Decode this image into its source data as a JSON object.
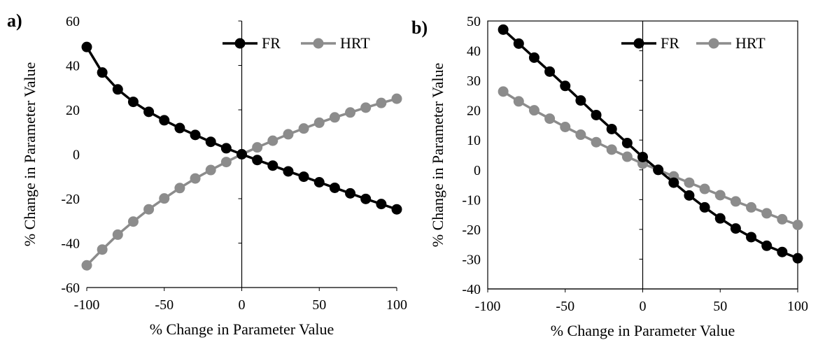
{
  "colors": {
    "FR": "#000000",
    "HRT": "#8c8c8c",
    "axis": "#000000"
  },
  "chart_data": [
    {
      "type": "line",
      "panel_label": "a)",
      "xlabel": "% Change in Parameter Value",
      "ylabel": "% Change in Parameter Value",
      "xlim": [
        -100,
        100
      ],
      "ylim": [
        -60,
        60
      ],
      "xticks": [
        -100,
        -50,
        0,
        50,
        100
      ],
      "yticks": [
        -60,
        -40,
        -20,
        0,
        20,
        40,
        60
      ],
      "grid": false,
      "legend": "top-right",
      "x": [
        -100,
        -90,
        -80,
        -70,
        -60,
        -50,
        -40,
        -30,
        -20,
        -10,
        0,
        10,
        20,
        30,
        40,
        50,
        60,
        70,
        80,
        90,
        100
      ],
      "series": [
        {
          "name": "FR",
          "color_key": "FR",
          "values": [
            48.3,
            36.8,
            29.2,
            23.6,
            19.1,
            15.3,
            11.8,
            8.7,
            5.6,
            2.7,
            0,
            -2.6,
            -5.1,
            -7.7,
            -10.1,
            -12.6,
            -15.1,
            -17.6,
            -20.1,
            -22.4,
            -24.8
          ]
        },
        {
          "name": "HRT",
          "color_key": "HRT",
          "values": [
            -50,
            -42.9,
            -36.2,
            -30.3,
            -24.8,
            -19.9,
            -15.2,
            -10.9,
            -7.1,
            -3.5,
            0,
            3.1,
            6.1,
            9,
            11.6,
            14.2,
            16.6,
            18.8,
            21,
            23.1,
            25
          ]
        }
      ]
    },
    {
      "type": "line",
      "panel_label": "b)",
      "xlabel": "% Change in Parameter Value",
      "ylabel": "% Change in Parameter Value",
      "xlim": [
        -100,
        100
      ],
      "ylim": [
        -40,
        50
      ],
      "xticks": [
        -100,
        -50,
        0,
        50,
        100
      ],
      "yticks": [
        -40,
        -30,
        -20,
        -10,
        0,
        10,
        20,
        30,
        40,
        50
      ],
      "grid": false,
      "legend": "top-right",
      "x": [
        -90,
        -80,
        -70,
        -60,
        -50,
        -40,
        -30,
        -20,
        -10,
        0,
        10,
        20,
        30,
        40,
        50,
        60,
        70,
        80,
        90,
        100
      ],
      "series": [
        {
          "name": "FR",
          "color_key": "FR",
          "values": [
            47.1,
            42.4,
            37.7,
            33,
            28.2,
            23.3,
            18.4,
            13.7,
            9,
            4.3,
            0,
            -4.3,
            -8.6,
            -12.6,
            -16.3,
            -19.7,
            -22.6,
            -25.5,
            -27.6,
            -29.7
          ]
        },
        {
          "name": "HRT",
          "color_key": "HRT",
          "values": [
            26.3,
            23,
            20,
            17.2,
            14.4,
            11.8,
            9.3,
            6.8,
            4.4,
            2.1,
            0,
            -2.2,
            -4.3,
            -6.4,
            -8.5,
            -10.6,
            -12.6,
            -14.6,
            -16.6,
            -18.5
          ]
        }
      ]
    }
  ]
}
